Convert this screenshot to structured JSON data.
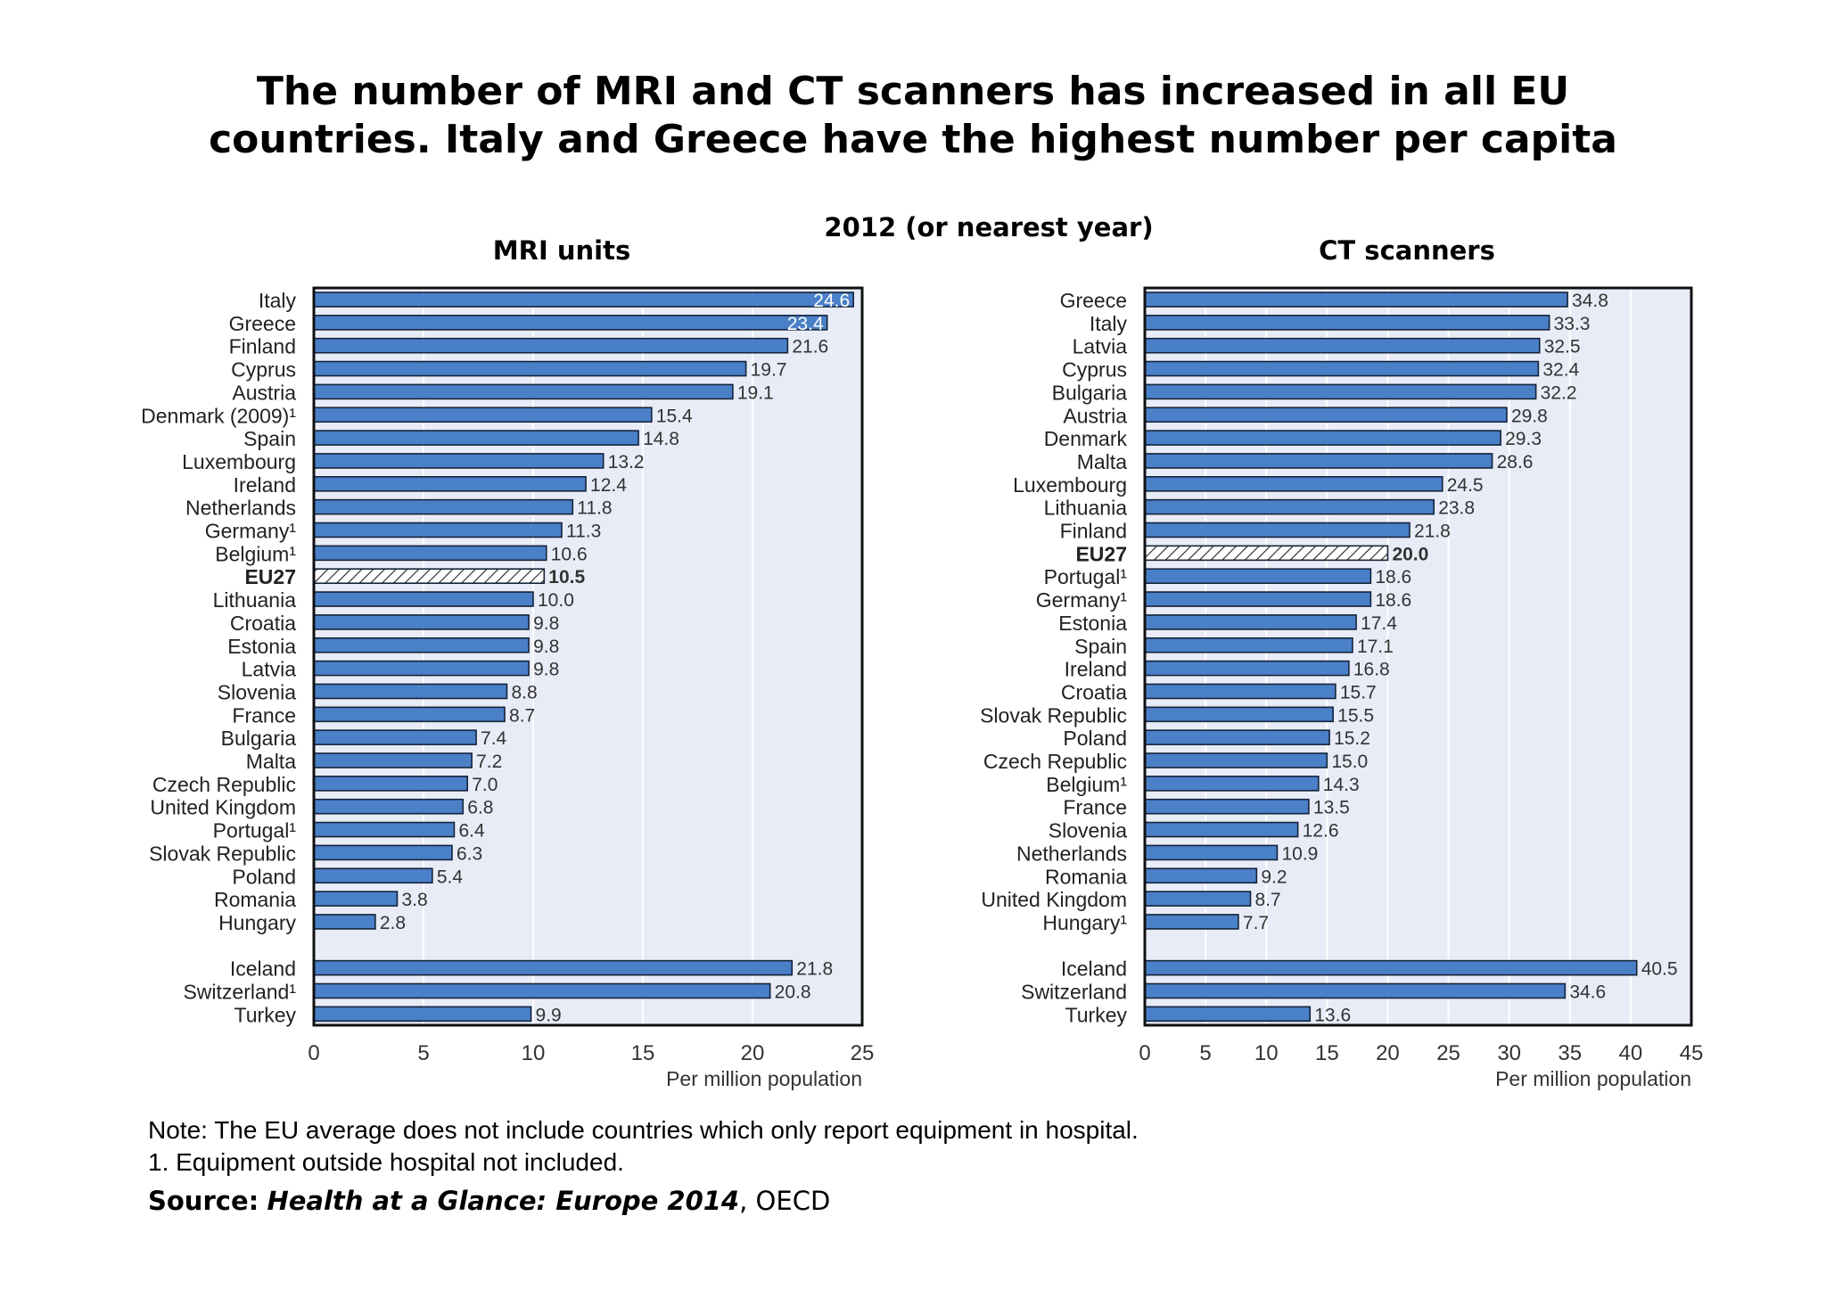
{
  "title_line1": "The number of MRI and CT scanners has increased in all EU",
  "title_line2": "countries. Italy and Greece have the highest number per capita",
  "subtitle": "2012 (or nearest year)",
  "note_line1": "Note: The EU average does not include countries which only report equipment in hospital.",
  "note_line2": "1. Equipment outside hospital not included.",
  "source_label": "Source:",
  "source_title": "Health at a Glance: Europe 2014",
  "source_rest": ", OECD",
  "colors": {
    "bar": "#4a80c8",
    "bar_edge": "#14233a",
    "plot_bg": "#e8ecf7",
    "grid": "#ffffff"
  },
  "chart_data": [
    {
      "type": "bar",
      "orientation": "horizontal",
      "title": "MRI units",
      "xlabel": "Per million population",
      "xlim": [
        0,
        25
      ],
      "xticks": [
        0,
        5,
        10,
        15,
        20,
        25
      ],
      "highlight": "EU27",
      "categories": [
        "Italy",
        "Greece",
        "Finland",
        "Cyprus",
        "Austria",
        "Denmark (2009)¹",
        "Spain",
        "Luxembourg",
        "Ireland",
        "Netherlands",
        "Germany¹",
        "Belgium¹",
        "EU27",
        "Lithuania",
        "Croatia",
        "Estonia",
        "Latvia",
        "Slovenia",
        "France",
        "Bulgaria",
        "Malta",
        "Czech Republic",
        "United Kingdom",
        "Portugal¹",
        "Slovak Republic",
        "Poland",
        "Romania",
        "Hungary",
        "",
        "Iceland",
        "Switzerland¹",
        "Turkey"
      ],
      "values": [
        24.6,
        23.4,
        21.6,
        19.7,
        19.1,
        15.4,
        14.8,
        13.2,
        12.4,
        11.8,
        11.3,
        10.6,
        10.5,
        10.0,
        9.8,
        9.8,
        9.8,
        8.8,
        8.7,
        7.4,
        7.2,
        7.0,
        6.8,
        6.4,
        6.3,
        5.4,
        3.8,
        2.8,
        null,
        21.8,
        20.8,
        9.9
      ],
      "value_labels": [
        "24.6",
        "23.4",
        "21.6",
        "19.7",
        "19.1",
        "15.4",
        "14.8",
        "13.2",
        "12.4",
        "11.8",
        "11.3",
        "10.6",
        "10.5",
        "10.0",
        "9.8",
        "9.8",
        "9.8",
        "8.8",
        "8.7",
        "7.4",
        "7.2",
        "7.0",
        "6.8",
        "6.4",
        "6.3",
        "5.4",
        "3.8",
        "2.8",
        "",
        "21.8",
        "20.8",
        "9.9"
      ]
    },
    {
      "type": "bar",
      "orientation": "horizontal",
      "title": "CT scanners",
      "xlabel": "Per million population",
      "xlim": [
        0,
        45
      ],
      "xticks": [
        0,
        5,
        10,
        15,
        20,
        25,
        30,
        35,
        40,
        45
      ],
      "highlight": "EU27",
      "categories": [
        "Greece",
        "Italy",
        "Latvia",
        "Cyprus",
        "Bulgaria",
        "Austria",
        "Denmark",
        "Malta",
        "Luxembourg",
        "Lithuania",
        "Finland",
        "EU27",
        "Portugal¹",
        "Germany¹",
        "Estonia",
        "Spain",
        "Ireland",
        "Croatia",
        "Slovak Republic",
        "Poland",
        "Czech Republic",
        "Belgium¹",
        "France",
        "Slovenia",
        "Netherlands",
        "Romania",
        "United Kingdom",
        "Hungary¹",
        "",
        "Iceland",
        "Switzerland",
        "Turkey"
      ],
      "values": [
        34.8,
        33.3,
        32.5,
        32.4,
        32.2,
        29.8,
        29.3,
        28.6,
        24.5,
        23.8,
        21.8,
        20.0,
        18.6,
        18.6,
        17.4,
        17.1,
        16.8,
        15.7,
        15.5,
        15.2,
        15.0,
        14.3,
        13.5,
        12.6,
        10.9,
        9.2,
        8.7,
        7.7,
        null,
        40.5,
        34.6,
        13.6
      ],
      "value_labels": [
        "34.8",
        "33.3",
        "32.5",
        "32.4",
        "32.2",
        "29.8",
        "29.3",
        "28.6",
        "24.5",
        "23.8",
        "21.8",
        "20.0",
        "18.6",
        "18.6",
        "17.4",
        "17.1",
        "16.8",
        "15.7",
        "15.5",
        "15.2",
        "15.0",
        "14.3",
        "13.5",
        "12.6",
        "10.9",
        "9.2",
        "8.7",
        "7.7",
        "",
        "40.5",
        "34.6",
        "13.6"
      ]
    }
  ]
}
